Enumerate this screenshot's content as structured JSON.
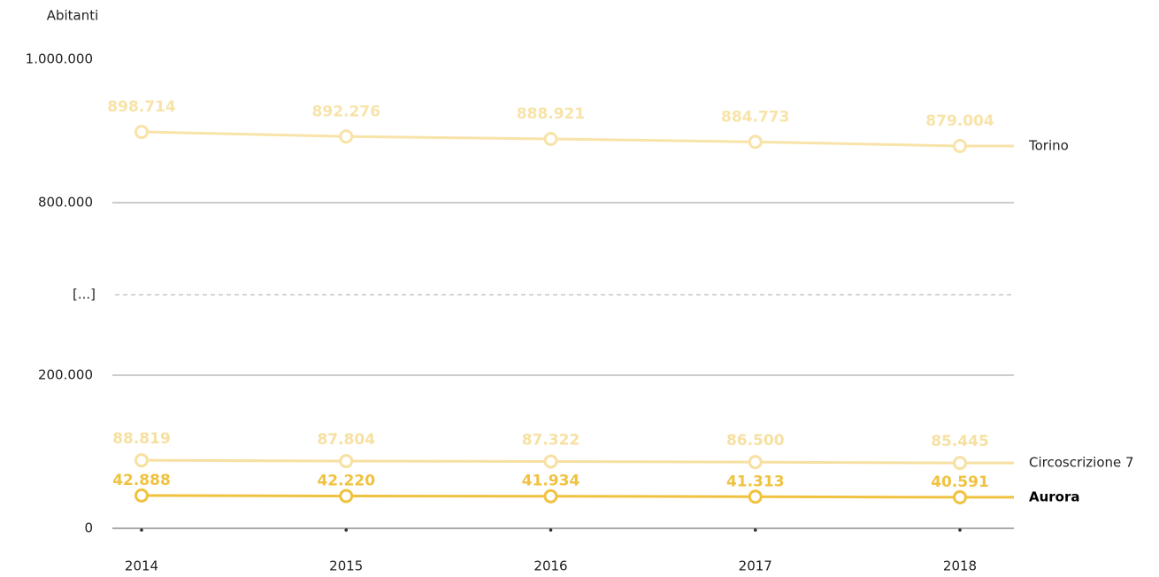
{
  "chart_data": {
    "type": "line",
    "y_axis_label": "Abitanti",
    "axis_break_label": "[...]",
    "axis_break": [
      200000,
      800000
    ],
    "categories": [
      "2014",
      "2015",
      "2016",
      "2017",
      "2018"
    ],
    "ylim": [
      0,
      1000000
    ],
    "yticks": [
      {
        "value": 0,
        "label": "0"
      },
      {
        "value": 200000,
        "label": "200.000"
      },
      {
        "value": 800000,
        "label": "800.000"
      },
      {
        "value": 1000000,
        "label": "1.000.000"
      }
    ],
    "grid": true,
    "series": [
      {
        "name": "Torino",
        "color": "#f8e3a8",
        "values": [
          898714,
          892276,
          888921,
          884773,
          879004
        ],
        "value_labels": [
          "898.714",
          "892.276",
          "888.921",
          "884.773",
          "879.004"
        ]
      },
      {
        "name": "Circoscrizione 7",
        "color": "#f6e0a2",
        "values": [
          88819,
          87804,
          87322,
          86500,
          85445
        ],
        "value_labels": [
          "88.819",
          "87.804",
          "87.322",
          "86.500",
          "85.445"
        ]
      },
      {
        "name": "Aurora",
        "color": "#f0c23f",
        "values": [
          42888,
          42220,
          41934,
          41313,
          40591
        ],
        "value_labels": [
          "42.888",
          "42.220",
          "41.934",
          "41.313",
          "40.591"
        ]
      }
    ]
  }
}
